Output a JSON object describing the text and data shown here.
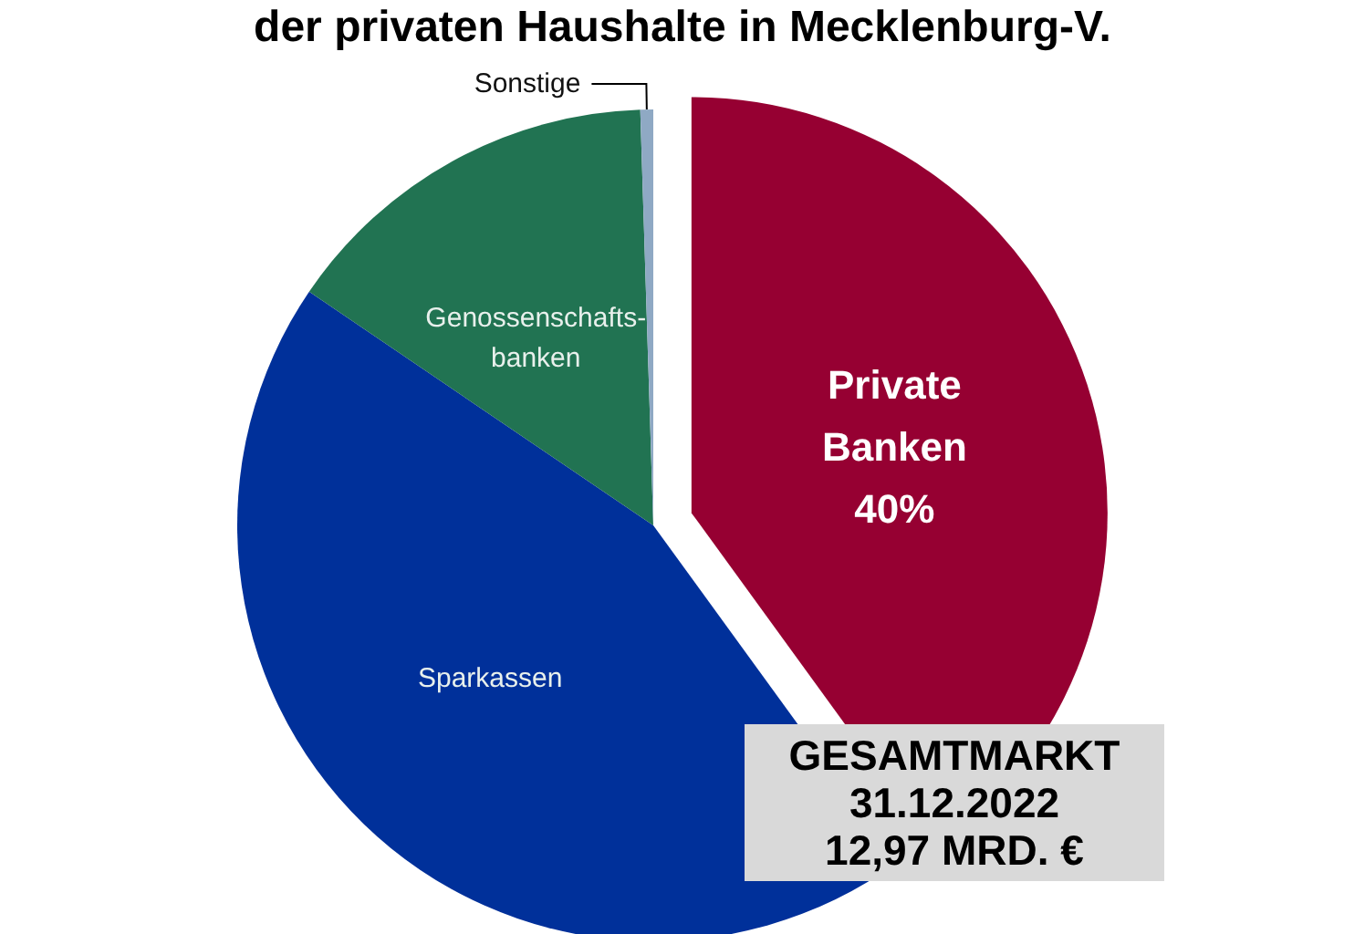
{
  "chart_data": {
    "type": "pie",
    "title": "der privaten Haushalte in Mecklenburg-V.",
    "categories": [
      "Private Banken",
      "Sparkassen",
      "Genossenschafts-\nbanken",
      "Sonstige"
    ],
    "values": [
      40,
      44.5,
      15,
      0.5
    ],
    "colors": [
      "#960032",
      "#00309a",
      "#217352",
      "#8fa9c4"
    ],
    "value_labels": [
      "40%",
      null,
      null,
      null
    ],
    "annotations": [
      "GESAMTMARKT\n31.12.2022\n12,97 MRD. €"
    ]
  }
}
